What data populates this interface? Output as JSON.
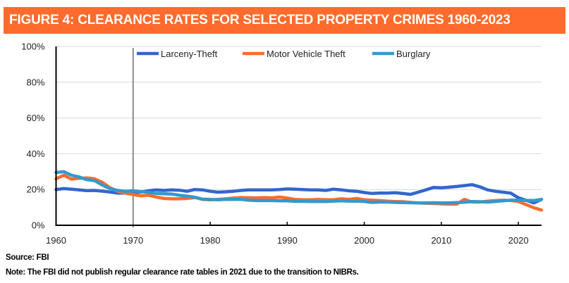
{
  "title": "FIGURE 4: CLEARANCE RATES FOR SELECTED PROPERTY CRIMES 1960-2023",
  "footer": {
    "source": "Source: FBI",
    "note": "Note: The FBI did not publish regular clearance rate tables in 2021 due to the transition to NIBRs."
  },
  "colors": {
    "title_bg": "#ff6b2c",
    "larceny": "#3366cc",
    "mvt": "#ff6b2c",
    "burglary": "#3399cc",
    "marker_line": "#8c8c8c"
  },
  "chart_data": {
    "type": "line",
    "title": "FIGURE 4: CLEARANCE RATES FOR SELECTED PROPERTY CRIMES 1960-2023",
    "xlabel": "",
    "ylabel": "",
    "xlim": [
      1960,
      2023
    ],
    "ylim": [
      0,
      100
    ],
    "x_ticks": [
      1960,
      1970,
      1980,
      1990,
      2000,
      2010,
      2020
    ],
    "y_ticks": [
      0,
      20,
      40,
      60,
      80,
      100
    ],
    "y_tick_labels": [
      "0%",
      "20%",
      "40%",
      "60%",
      "80%",
      "100%"
    ],
    "grid": "horizontal",
    "legend": "top",
    "vertical_marker_year": 1970,
    "x": [
      1960,
      1961,
      1962,
      1963,
      1964,
      1965,
      1966,
      1967,
      1968,
      1969,
      1970,
      1971,
      1972,
      1973,
      1974,
      1975,
      1976,
      1977,
      1978,
      1979,
      1980,
      1981,
      1982,
      1983,
      1984,
      1985,
      1986,
      1987,
      1988,
      1989,
      1990,
      1991,
      1992,
      1993,
      1994,
      1995,
      1996,
      1997,
      1998,
      1999,
      2000,
      2001,
      2002,
      2003,
      2004,
      2005,
      2006,
      2007,
      2008,
      2009,
      2010,
      2011,
      2012,
      2013,
      2014,
      2015,
      2016,
      2017,
      2018,
      2019,
      2020,
      2022,
      2023
    ],
    "series": [
      {
        "name": "Larceny-Theft",
        "color": "#3366cc",
        "values": [
          20,
          20.5,
          20.2,
          19.8,
          19.4,
          19.5,
          19.1,
          18.6,
          18,
          18,
          18.5,
          18.6,
          19.3,
          19.8,
          19.5,
          19.8,
          19.6,
          19,
          20,
          19.8,
          19,
          18.5,
          18.7,
          19,
          19.5,
          19.8,
          19.8,
          19.8,
          19.8,
          20,
          20.3,
          20.2,
          20,
          19.8,
          19.8,
          19.5,
          20.2,
          19.8,
          19.3,
          19,
          18.3,
          17.8,
          18,
          18,
          18.2,
          17.8,
          17.3,
          18.5,
          19.8,
          21.2,
          21,
          21.3,
          21.7,
          22.2,
          22.7,
          21.5,
          19.8,
          19,
          18.5,
          18,
          15.4,
          12.5,
          14.5
        ]
      },
      {
        "name": "Motor Vehicle Theft",
        "color": "#ff6b2c",
        "values": [
          26,
          28,
          25.8,
          26.3,
          26.5,
          26,
          24,
          21,
          19,
          18,
          17.2,
          16.5,
          16.8,
          15.8,
          15,
          14.8,
          14.8,
          15,
          15.5,
          14.5,
          14.2,
          14.5,
          14.8,
          15.2,
          15.5,
          15.4,
          15.3,
          15.5,
          15.3,
          15.8,
          15.2,
          14.5,
          14.3,
          14.3,
          14.5,
          14.3,
          14.3,
          14.8,
          14.5,
          15,
          14.3,
          14,
          13.8,
          13.5,
          13.3,
          13.2,
          12.8,
          12.5,
          12.3,
          12.2,
          12,
          11.8,
          11.8,
          14.5,
          13,
          13,
          13.5,
          13.8,
          14,
          13.8,
          13.3,
          9.8,
          8.5
        ]
      },
      {
        "name": "Burglary",
        "color": "#3399cc",
        "values": [
          29.5,
          30,
          28,
          27,
          25.5,
          25,
          22.5,
          20.5,
          19.5,
          19,
          19.3,
          18.8,
          18.4,
          17.8,
          17.6,
          17.5,
          16.8,
          16.3,
          15.7,
          14.6,
          14.5,
          14.3,
          14.5,
          14.5,
          14.5,
          14,
          13.8,
          13.8,
          13.8,
          13.7,
          13.7,
          13.4,
          13.4,
          13.3,
          13.3,
          13.3,
          13.5,
          13.7,
          13.5,
          13.5,
          13.3,
          12.8,
          13,
          13,
          12.8,
          12.7,
          12.6,
          12.5,
          12.5,
          12.6,
          12.5,
          12.5,
          12.7,
          12.9,
          13.3,
          13.2,
          13,
          13.3,
          13.7,
          14,
          14,
          13.8,
          14.5
        ]
      }
    ]
  }
}
